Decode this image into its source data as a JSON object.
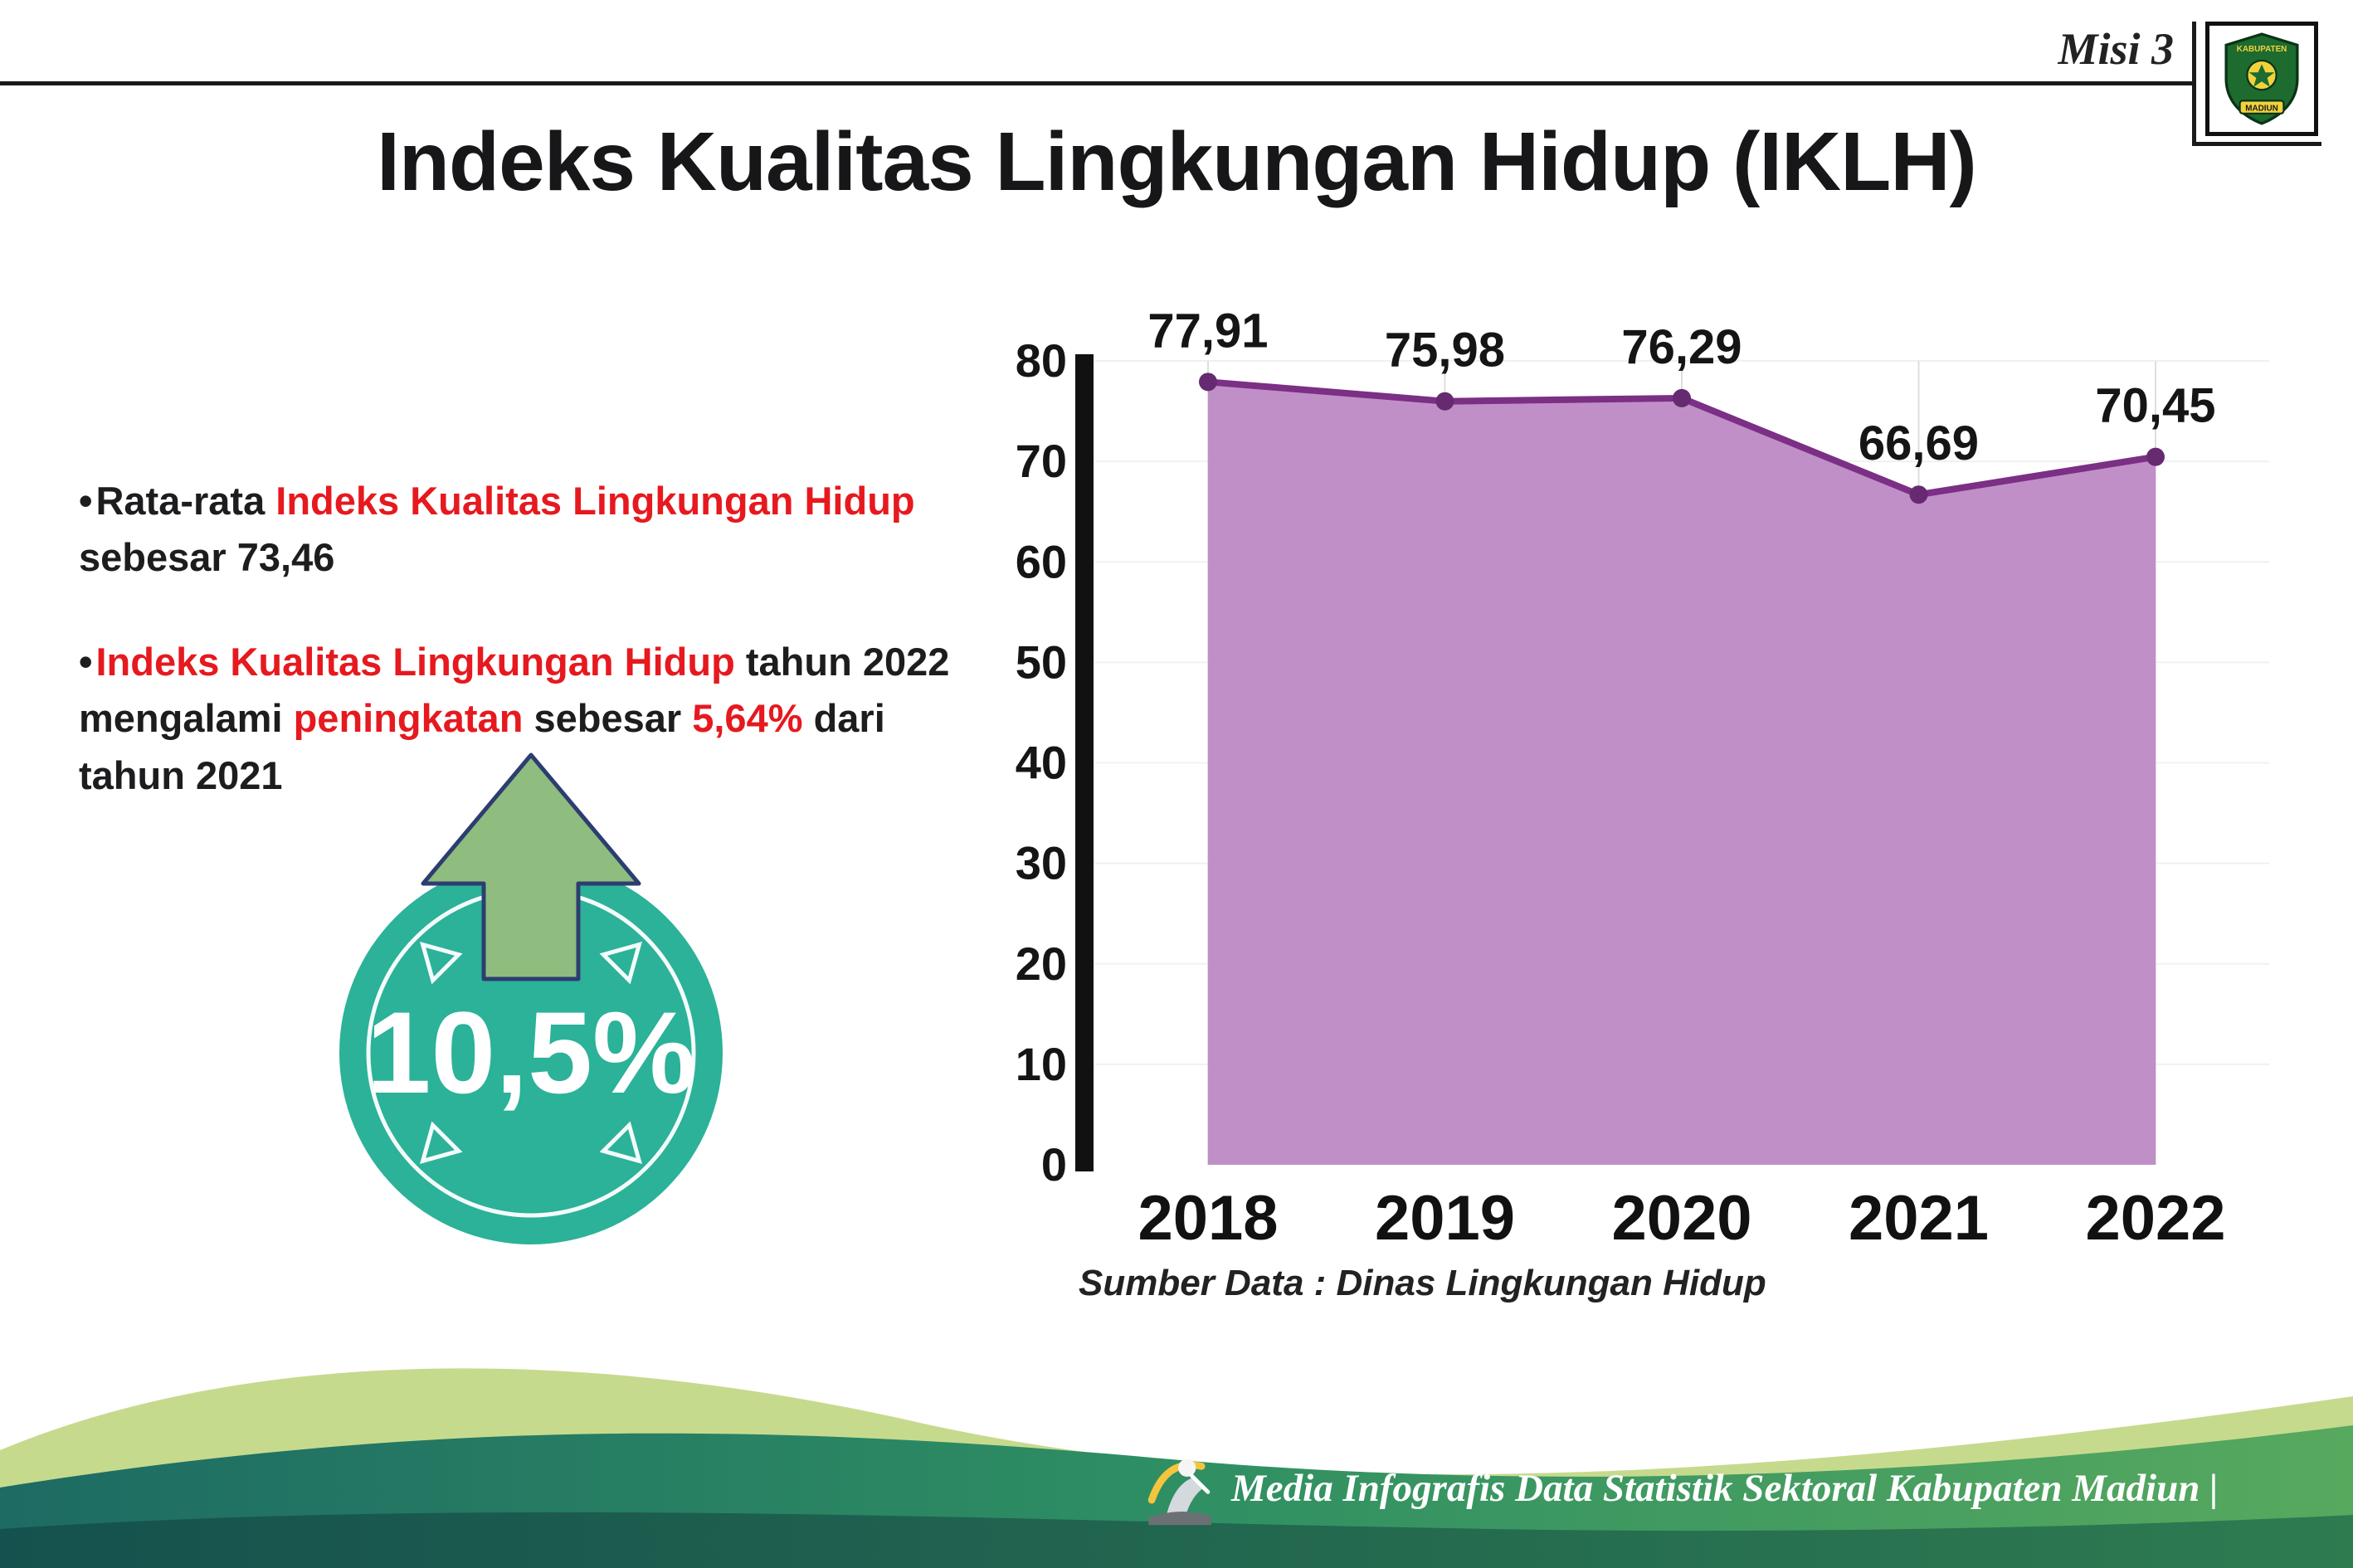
{
  "meta": {
    "misi": "Misi 3"
  },
  "title": "Indeks Kualitas Lingkungan Hidup (IKLH)",
  "bullets": [
    {
      "segments": [
        {
          "t": "Rata-rata ",
          "red": false
        },
        {
          "t": "Indeks Kualitas Lingkungan Hidup",
          "red": true
        },
        {
          "t": " sebesar 73,46",
          "red": false
        }
      ]
    },
    {
      "segments": [
        {
          "t": "Indeks Kualitas Lingkungan Hidup",
          "red": true
        },
        {
          "t": " tahun 2022 mengalami ",
          "red": false
        },
        {
          "t": "peningkatan",
          "red": true
        },
        {
          "t": " sebesar ",
          "red": false
        },
        {
          "t": "5,64%",
          "red": true
        },
        {
          "t": " dari tahun 2021",
          "red": false
        }
      ]
    }
  ],
  "badge": {
    "value": "10,5%",
    "circle_color": "#2bb299",
    "arrow_color": "#8fbc7f",
    "arrow_outline": "#2c3e70"
  },
  "chart_data": {
    "type": "area",
    "title": "Indeks Kualitas Lingkungan Hidup (IKLH)",
    "categories": [
      "2018",
      "2019",
      "2020",
      "2021",
      "2022"
    ],
    "values": [
      77.91,
      75.98,
      76.29,
      66.69,
      70.45
    ],
    "point_labels": [
      "77,91",
      "75,98",
      "76,29",
      "66,69",
      "70,45"
    ],
    "ylim": [
      0,
      80
    ],
    "y_ticks": [
      0,
      10,
      20,
      30,
      40,
      50,
      60,
      70,
      80
    ],
    "grid": true,
    "legend": "none",
    "colors": {
      "area": "#c18fc7",
      "line": "#7b2f85",
      "marker": "#662a70"
    }
  },
  "source": "Sumber Data : Dinas Lingkungan Hidup",
  "footer": {
    "text": "Media Infografis Data Statistik Sektoral Kabupaten Madiun |"
  },
  "logo": {
    "top": "KABUPATEN",
    "bottom": "MADIUN"
  },
  "colors": {
    "red_accent": "#e6191f",
    "teal": "#2bb299",
    "wave_dark": "#1d6b63",
    "wave_green": "#2f8f63",
    "wave_light": "#c6da8e"
  }
}
